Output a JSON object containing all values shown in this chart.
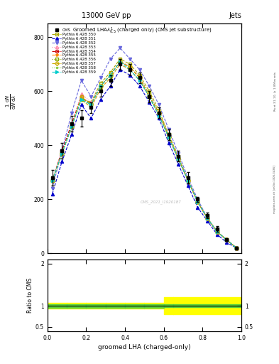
{
  "title_top": "13000 GeV pp",
  "title_right": "Jets",
  "plot_title": "Groomed LHA$\\lambda^{1}_{0.5}$ (charged only) (CMS jet substructure)",
  "xlabel": "groomed LHA (charged-only)",
  "ylabel_main": "$\\frac{1}{\\mathrm{d}N}\\frac{\\mathrm{d}N}{\\mathrm{d}\\lambda}$",
  "ylabel_ratio": "Ratio to CMS",
  "right_label": "mcplots.cern.ch [arXiv:1306.3436]",
  "right_label2": "Rivet 3.1.10, $\\geq$ 1.8M events",
  "watermark": "CMS_2021_I1920187",
  "x_values": [
    0.025,
    0.075,
    0.125,
    0.175,
    0.225,
    0.275,
    0.325,
    0.375,
    0.425,
    0.475,
    0.525,
    0.575,
    0.625,
    0.675,
    0.725,
    0.775,
    0.825,
    0.875,
    0.925,
    0.975
  ],
  "cms_data": [
    280,
    380,
    480,
    500,
    540,
    600,
    640,
    700,
    680,
    650,
    580,
    520,
    440,
    360,
    280,
    200,
    140,
    90,
    50,
    20
  ],
  "cms_errors": [
    30,
    30,
    30,
    30,
    20,
    20,
    20,
    20,
    20,
    20,
    20,
    20,
    20,
    20,
    20,
    10,
    10,
    10,
    5,
    5
  ],
  "pythia_lines": [
    {
      "label": "Pythia 6.428 350",
      "color": "#aaaa00",
      "marker": "s",
      "linestyle": "--",
      "fillstyle": "none",
      "y": [
        270,
        370,
        470,
        570,
        560,
        630,
        670,
        720,
        700,
        660,
        600,
        530,
        440,
        360,
        270,
        190,
        130,
        80,
        50,
        20
      ]
    },
    {
      "label": "Pythia 6.428 351",
      "color": "#0000cc",
      "marker": "^",
      "linestyle": "--",
      "fillstyle": "full",
      "y": [
        220,
        340,
        440,
        550,
        500,
        570,
        620,
        680,
        660,
        620,
        560,
        500,
        410,
        330,
        250,
        170,
        120,
        70,
        40,
        20
      ]
    },
    {
      "label": "Pythia 6.428 352",
      "color": "#6666dd",
      "marker": "v",
      "linestyle": "--",
      "fillstyle": "full",
      "y": [
        240,
        380,
        520,
        640,
        580,
        650,
        720,
        760,
        720,
        680,
        620,
        550,
        460,
        370,
        280,
        200,
        130,
        80,
        50,
        20
      ]
    },
    {
      "label": "Pythia 6.428 353",
      "color": "#ff88aa",
      "marker": "^",
      "linestyle": ":",
      "fillstyle": "none",
      "y": [
        270,
        380,
        480,
        590,
        560,
        620,
        660,
        710,
        690,
        650,
        590,
        520,
        440,
        350,
        270,
        190,
        130,
        80,
        50,
        20
      ]
    },
    {
      "label": "Pythia 6.428 354",
      "color": "#cc0000",
      "marker": "o",
      "linestyle": "--",
      "fillstyle": "none",
      "y": [
        270,
        380,
        480,
        580,
        550,
        620,
        660,
        710,
        690,
        650,
        580,
        520,
        430,
        350,
        270,
        190,
        130,
        80,
        50,
        20
      ]
    },
    {
      "label": "Pythia 6.428 355",
      "color": "#ff8800",
      "marker": "*",
      "linestyle": "--",
      "fillstyle": "full",
      "y": [
        270,
        370,
        470,
        570,
        540,
        610,
        650,
        700,
        680,
        640,
        580,
        510,
        430,
        350,
        270,
        190,
        130,
        80,
        50,
        20
      ]
    },
    {
      "label": "Pythia 6.428 356",
      "color": "#88aa00",
      "marker": "s",
      "linestyle": ":",
      "fillstyle": "none",
      "y": [
        270,
        370,
        470,
        570,
        550,
        620,
        660,
        710,
        690,
        650,
        590,
        520,
        440,
        350,
        270,
        190,
        130,
        80,
        50,
        20
      ]
    },
    {
      "label": "Pythia 6.428 357",
      "color": "#ccaa00",
      "marker": "D",
      "linestyle": "--",
      "fillstyle": "none",
      "y": [
        270,
        370,
        470,
        580,
        550,
        620,
        660,
        710,
        690,
        650,
        580,
        520,
        430,
        350,
        270,
        190,
        130,
        80,
        50,
        20
      ]
    },
    {
      "label": "Pythia 6.428 358",
      "color": "#88cc44",
      "marker": ".",
      "linestyle": ":",
      "fillstyle": "full",
      "y": [
        270,
        370,
        470,
        570,
        540,
        610,
        650,
        700,
        680,
        640,
        580,
        510,
        430,
        350,
        270,
        190,
        130,
        80,
        50,
        20
      ]
    },
    {
      "label": "Pythia 6.428 359",
      "color": "#00cccc",
      "marker": ">",
      "linestyle": "--",
      "fillstyle": "full",
      "y": [
        270,
        370,
        470,
        570,
        550,
        620,
        660,
        710,
        680,
        640,
        580,
        510,
        430,
        350,
        270,
        190,
        130,
        80,
        50,
        20
      ]
    }
  ],
  "ratio_x_edges": [
    0.0,
    0.1,
    0.2,
    0.3,
    0.4,
    0.5,
    0.6,
    0.65,
    1.0
  ],
  "ratio_green_low": [
    0.96,
    0.96,
    0.96,
    0.96,
    0.96,
    0.96,
    0.97,
    0.97
  ],
  "ratio_green_high": [
    1.04,
    1.04,
    1.04,
    1.04,
    1.04,
    1.04,
    1.03,
    1.03
  ],
  "ratio_yellow_low": [
    0.93,
    0.93,
    0.93,
    0.93,
    0.93,
    0.93,
    0.8,
    0.8
  ],
  "ratio_yellow_high": [
    1.07,
    1.07,
    1.07,
    1.07,
    1.07,
    1.07,
    1.2,
    1.2
  ],
  "ylim_main": [
    0,
    850
  ],
  "ylim_ratio": [
    0.4,
    2.1
  ],
  "yticks_main": [
    0,
    200,
    400,
    600,
    800
  ],
  "ytick_labels_main": [
    "0",
    "200",
    "400",
    "600",
    "800"
  ],
  "xlim": [
    0,
    1.0
  ]
}
